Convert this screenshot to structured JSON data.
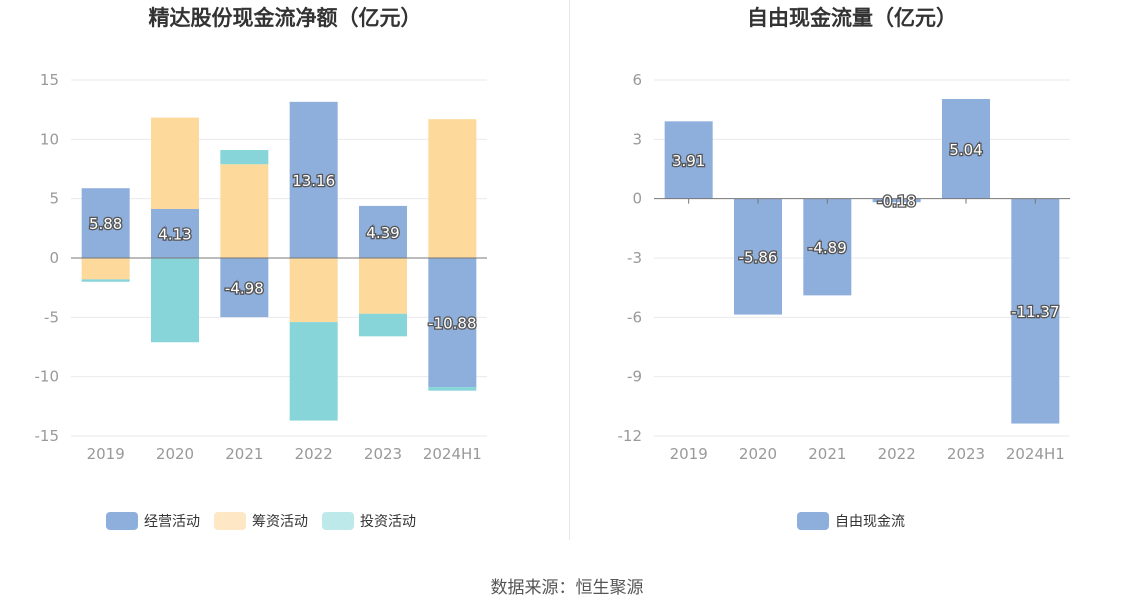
{
  "source": "数据来源：恒生聚源",
  "colors": {
    "operating": "#8eaedb",
    "financing": "#fdd99b",
    "investing": "#87d5d8",
    "free": "#8eaedb",
    "legend_financing": "#fde7c4",
    "legend_investing": "#bde9ea"
  },
  "chart_data": [
    {
      "type": "bar",
      "stacked": true,
      "title": "精达股份现金流净额（亿元）",
      "categories": [
        "2019",
        "2020",
        "2021",
        "2022",
        "2023",
        "2024H1"
      ],
      "ylim": [
        -15,
        15
      ],
      "yticks": [
        15,
        10,
        5,
        0,
        -5,
        -10,
        -15
      ],
      "grid": true,
      "legend_position": "bottom",
      "series": [
        {
          "name": "经营活动",
          "values": [
            5.88,
            4.13,
            -4.98,
            13.16,
            4.39,
            -10.88
          ],
          "labeled": true
        },
        {
          "name": "筹资活动",
          "values": [
            -1.8,
            7.7,
            7.9,
            -5.4,
            -4.7,
            11.7
          ],
          "labeled": false
        },
        {
          "name": "投资活动",
          "values": [
            -0.2,
            -7.1,
            1.2,
            -8.3,
            -1.9,
            -0.3
          ],
          "labeled": false
        }
      ],
      "data_labels": [
        "5.88",
        "4.13",
        "-4.98",
        "13.16",
        "4.39",
        "-10.88"
      ]
    },
    {
      "type": "bar",
      "title": "自由现金流量（亿元）",
      "categories": [
        "2019",
        "2020",
        "2021",
        "2022",
        "2023",
        "2024H1"
      ],
      "ylim": [
        -12,
        6
      ],
      "yticks": [
        6,
        3,
        0,
        -3,
        -6,
        -9,
        -12
      ],
      "grid": true,
      "legend_position": "bottom",
      "series": [
        {
          "name": "自由现金流",
          "values": [
            3.91,
            -5.86,
            -4.89,
            -0.18,
            5.04,
            -11.37
          ]
        }
      ],
      "data_labels": [
        "3.91",
        "-5.86",
        "-4.89",
        "-0.18",
        "5.04",
        "-11.37"
      ]
    }
  ]
}
